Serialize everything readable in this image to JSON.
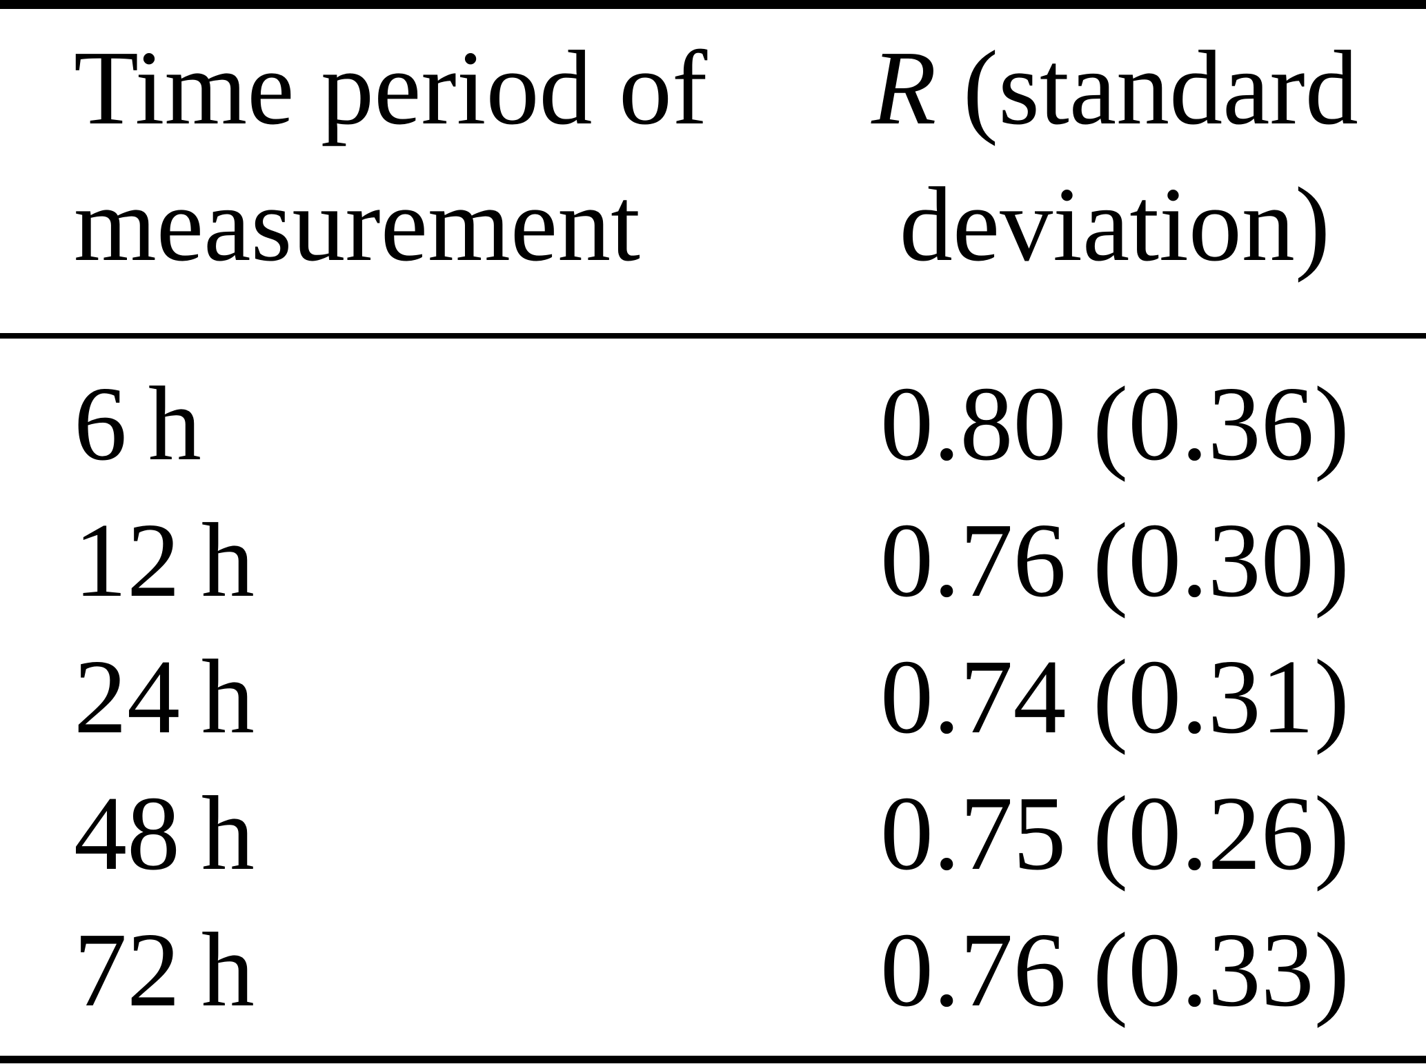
{
  "page": {
    "background": "#ffffff",
    "text_color": "#000000",
    "rule_color": "#000000"
  },
  "table": {
    "header": {
      "col1": "Time period of measurement",
      "col2_symbol": "R",
      "col2_rest": "(standard deviation)"
    },
    "rows": [
      {
        "time": "6 h",
        "value": "0.80 (0.36)"
      },
      {
        "time": "12 h",
        "value": "0.76 (0.30)"
      },
      {
        "time": "24 h",
        "value": "0.74 (0.31)"
      },
      {
        "time": "48 h",
        "value": "0.75 (0.26)"
      },
      {
        "time": "72 h",
        "value": "0.76 (0.33)"
      }
    ]
  }
}
